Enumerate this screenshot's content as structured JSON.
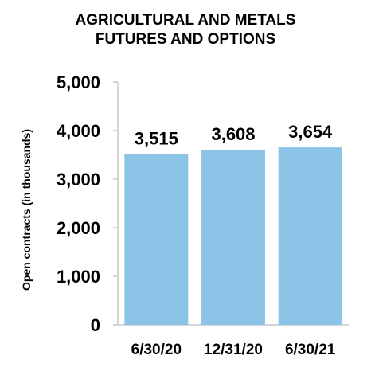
{
  "chart_data": {
    "type": "bar",
    "title_lines": [
      "AGRICULTURAL AND METALS",
      "FUTURES AND OPTIONS"
    ],
    "ylabel": "Open contracts (in thousands)",
    "xlabel": "",
    "categories": [
      "6/30/20",
      "12/31/20",
      "6/30/21"
    ],
    "values": [
      3515,
      3608,
      3654
    ],
    "value_labels": [
      "3,515",
      "3,608",
      "3,654"
    ],
    "ylim": [
      0,
      5000
    ],
    "yticks": [
      0,
      1000,
      2000,
      3000,
      4000,
      5000
    ],
    "ytick_labels": [
      "0",
      "1,000",
      "2,000",
      "3,000",
      "4,000",
      "5,000"
    ],
    "grid": false,
    "colors": {
      "bar": "#8cc4e8",
      "axis": "#c8c8c8",
      "text": "#000000"
    }
  }
}
